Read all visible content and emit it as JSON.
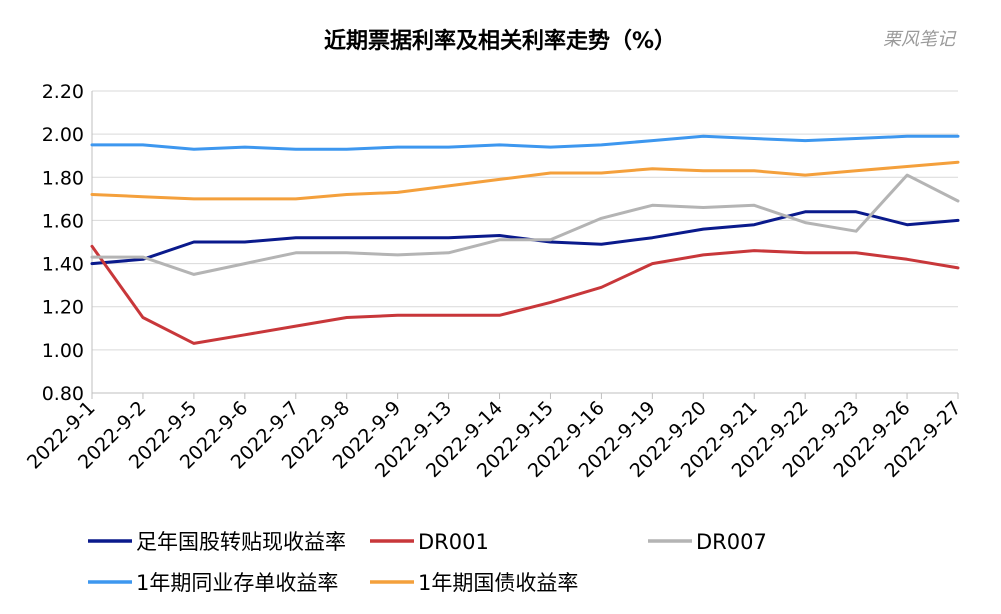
{
  "chart_data": {
    "type": "line",
    "title": "近期票据利率及相关利率走势（%）",
    "watermark": "栗风笔记",
    "xlabel": "",
    "ylabel": "",
    "categories": [
      "2022-9-1",
      "2022-9-2",
      "2022-9-5",
      "2022-9-6",
      "2022-9-7",
      "2022-9-8",
      "2022-9-9",
      "2022-9-13",
      "2022-9-14",
      "2022-9-15",
      "2022-9-16",
      "2022-9-19",
      "2022-9-20",
      "2022-9-21",
      "2022-9-22",
      "2022-9-23",
      "2022-9-26",
      "2022-9-27"
    ],
    "ylim": [
      0.8,
      2.2
    ],
    "yticks": [
      "0.80",
      "1.00",
      "1.20",
      "1.40",
      "1.60",
      "1.80",
      "2.00",
      "2.20"
    ],
    "grid": true,
    "legend_position": "bottom",
    "series": [
      {
        "name": "足年国股转贴现收益率",
        "color": "#0a1a8c",
        "values": [
          1.4,
          1.42,
          1.5,
          1.5,
          1.52,
          1.52,
          1.52,
          1.52,
          1.53,
          1.5,
          1.49,
          1.52,
          1.56,
          1.58,
          1.64,
          1.64,
          1.58,
          1.6
        ]
      },
      {
        "name": "DR001",
        "color": "#c8373a",
        "values": [
          1.48,
          1.15,
          1.03,
          1.07,
          1.11,
          1.15,
          1.16,
          1.16,
          1.16,
          1.22,
          1.29,
          1.4,
          1.44,
          1.46,
          1.45,
          1.45,
          1.42,
          1.38
        ]
      },
      {
        "name": "DR007",
        "color": "#b4b4b4",
        "values": [
          1.43,
          1.43,
          1.35,
          1.4,
          1.45,
          1.45,
          1.44,
          1.45,
          1.51,
          1.51,
          1.61,
          1.67,
          1.66,
          1.67,
          1.59,
          1.55,
          1.81,
          1.69
        ]
      },
      {
        "name": "1年期同业存单收益率",
        "color": "#3d97ef",
        "values": [
          1.95,
          1.95,
          1.93,
          1.94,
          1.93,
          1.93,
          1.94,
          1.94,
          1.95,
          1.94,
          1.95,
          1.97,
          1.99,
          1.98,
          1.97,
          1.98,
          1.99,
          1.99
        ]
      },
      {
        "name": "1年期国债收益率",
        "color": "#f4a03c",
        "values": [
          1.72,
          1.71,
          1.7,
          1.7,
          1.7,
          1.72,
          1.73,
          1.76,
          1.79,
          1.82,
          1.82,
          1.84,
          1.83,
          1.83,
          1.81,
          1.83,
          1.85,
          1.87
        ]
      }
    ]
  }
}
